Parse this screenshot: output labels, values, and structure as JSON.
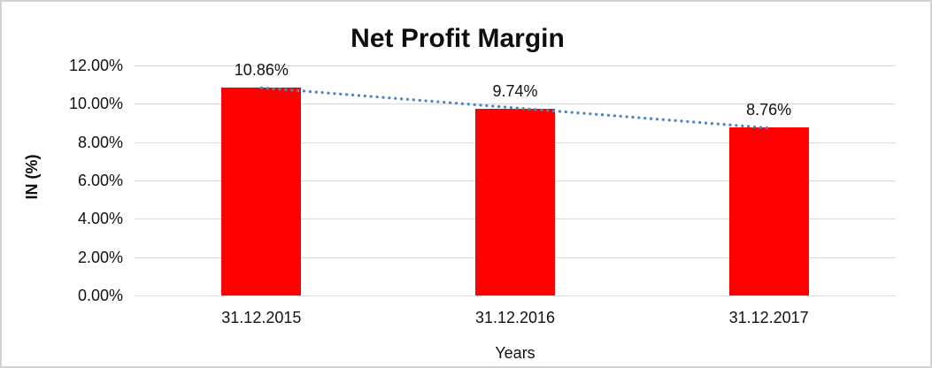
{
  "chart_data": {
    "type": "bar",
    "title": "Net Profit Margin",
    "categories": [
      "31.12.2015",
      "31.12.2016",
      "31.12.2017"
    ],
    "values": [
      10.86,
      9.74,
      8.76
    ],
    "data_labels": [
      "10.86%",
      "9.74%",
      "8.76%"
    ],
    "xlabel": "Years",
    "ylabel": "IN (%)",
    "ylim": [
      0,
      12
    ],
    "ytick_labels": [
      "0.00%",
      "2.00%",
      "4.00%",
      "6.00%",
      "8.00%",
      "10.00%",
      "12.00%"
    ],
    "grid": true,
    "legend_position": "none",
    "bar_color": "#ff0000",
    "gridline_color": "#d9d9d9",
    "trendline": {
      "type": "linear",
      "style": "dotted",
      "color": "#4a86c8",
      "series": "values"
    }
  }
}
